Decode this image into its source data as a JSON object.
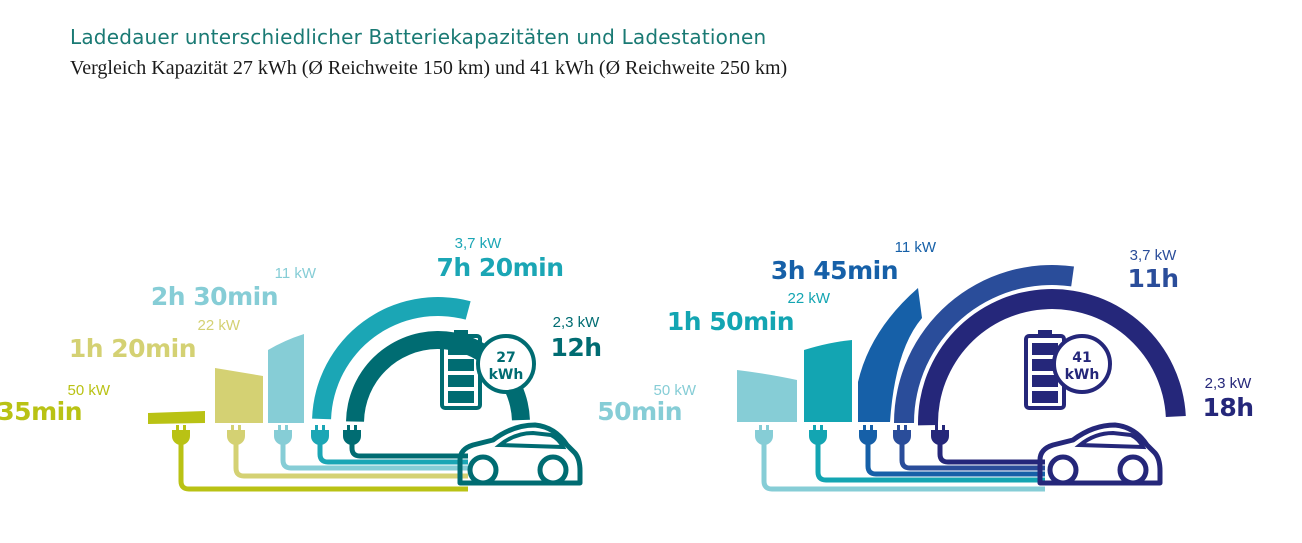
{
  "title": "Ladedauer unterschiedlicher Batteriekapazitäten und Ladestationen",
  "subtitle": "Vergleich Kapazität 27 kWh (Ø Reichweite 150 km) und 41 kWh (Ø Reichweite 250 km)",
  "chart_data": [
    {
      "type": "bar",
      "battery": {
        "value": "27",
        "unit": "kWh"
      },
      "colors": [
        "#b9c214",
        "#d4d173",
        "#86cdd6",
        "#1ba6b5",
        "#006c72"
      ],
      "battery_color": "#006c72",
      "categories": [
        "50 kW",
        "22 kW",
        "11 kW",
        "3,7 kW",
        "2,3 kW"
      ],
      "durations": [
        "35min",
        "1h 20min",
        "2h 30min",
        "7h 20min",
        "12h"
      ],
      "values_min": [
        35,
        80,
        150,
        440,
        720
      ]
    },
    {
      "type": "bar",
      "battery": {
        "value": "41",
        "unit": "kWh"
      },
      "colors": [
        "#86cdd6",
        "#13a5b2",
        "#1660a8",
        "#2a4d9a",
        "#25277a"
      ],
      "battery_color": "#25277a",
      "categories": [
        "50 kW",
        "22 kW",
        "11 kW",
        "3,7 kW",
        "2,3 kW"
      ],
      "durations": [
        "50min",
        "1h 50min",
        "3h 45min",
        "11h",
        "18h"
      ],
      "values_min": [
        50,
        110,
        225,
        660,
        1080
      ]
    }
  ]
}
